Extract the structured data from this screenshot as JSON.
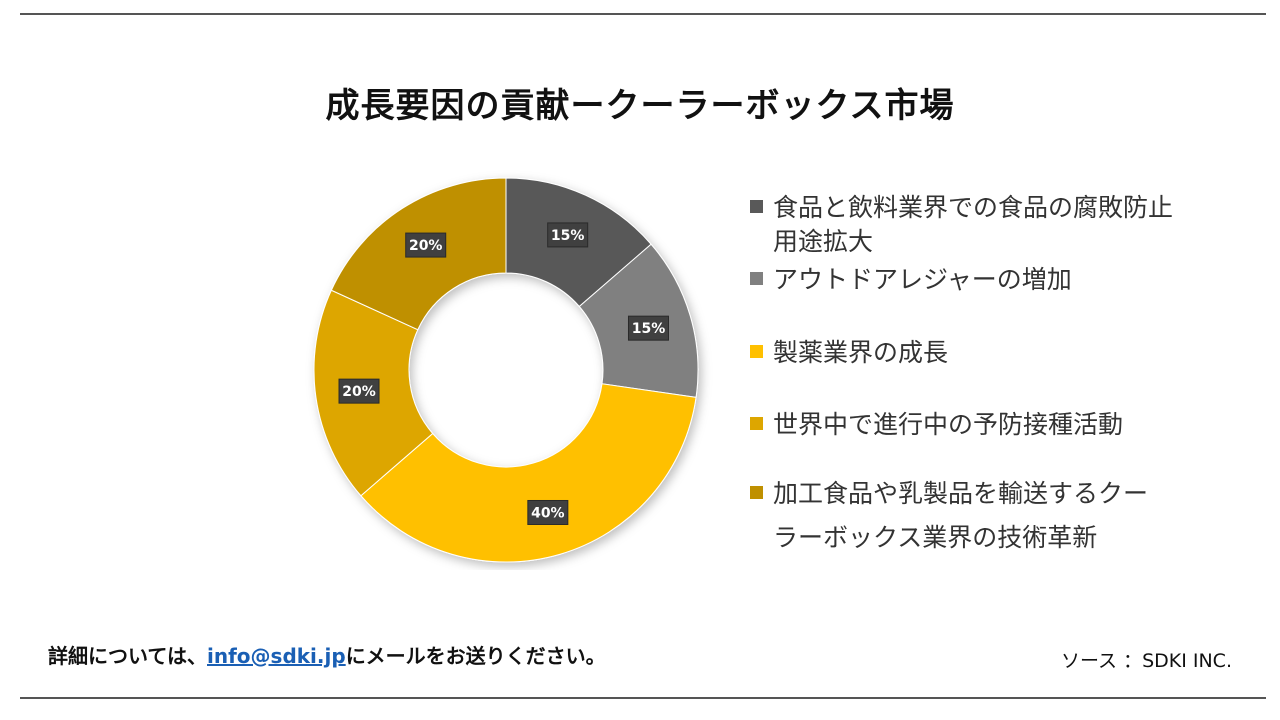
{
  "title": "成長要因の貢献ークーラーボックス市場",
  "chart_data": {
    "type": "pie",
    "donut": true,
    "slices": [
      {
        "label": "食品と飲料業界での食品の腐敗防止用途拡大",
        "value": 15,
        "data_label": "15%",
        "color": "#595959"
      },
      {
        "label": "アウトドアレジャーの増加",
        "value": 15,
        "data_label": "15%",
        "color": "#808080"
      },
      {
        "label": "製薬業界の成長",
        "value": 40,
        "data_label": "40%",
        "color": "#FFC000"
      },
      {
        "label": "世界中で進行中の予防接種活動",
        "value": 20,
        "data_label": "20%",
        "color": "#DDA600"
      },
      {
        "label": "加工食品や乳製品を輸送するクーラーボックス業界の技術革新",
        "value": 20,
        "data_label": "20%",
        "color": "#BF9000"
      }
    ],
    "legend_position": "right"
  },
  "legend": {
    "items": [
      {
        "lines": [
          "食品と飲料業界での食品の腐敗防止",
          "用途拡大"
        ]
      },
      {
        "lines": [
          "アウトドアレジャーの増加"
        ]
      },
      {
        "lines": [
          "製薬業界の成長"
        ]
      },
      {
        "lines": [
          "世界中で進行中の予防接種活動"
        ]
      },
      {
        "lines": [
          "加工食品や乳製品を輸送するクー",
          "ラーボックス業界の技術革新"
        ]
      }
    ]
  },
  "footer": {
    "note_prefix": "詳細については、",
    "email": "info@sdki.jp",
    "note_suffix": "にメールをお送りください。",
    "source": "ソース ：SDKI INC."
  }
}
